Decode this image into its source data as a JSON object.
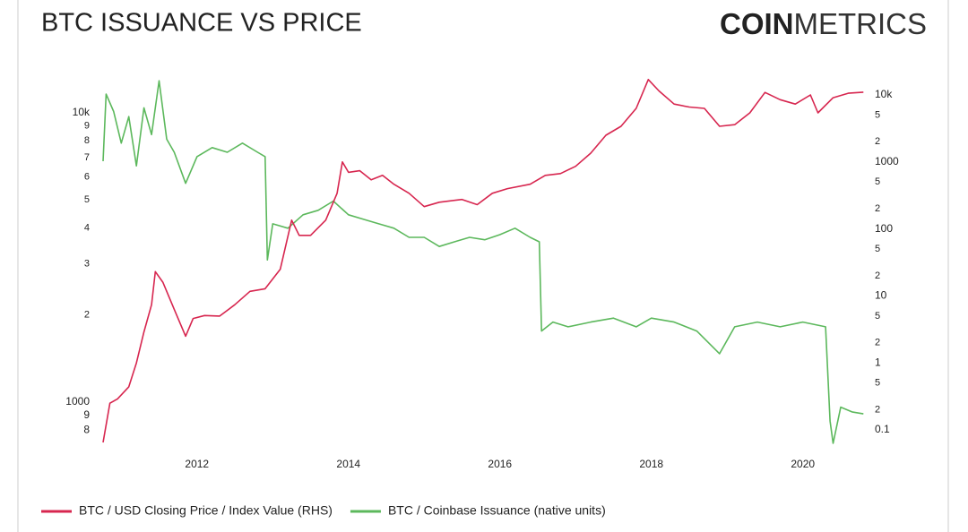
{
  "chart_data": {
    "type": "line",
    "title": "BTC ISSUANCE VS PRICE",
    "brand": {
      "bold": "COIN",
      "light": "METRICS"
    },
    "xlim": [
      2010.76,
      2020.82
    ],
    "xticks": [
      2012,
      2014,
      2016,
      2018,
      2020
    ],
    "log_scale": true,
    "ylim": [
      720,
      13100
    ],
    "yticks": [
      {
        "value": 800,
        "label": "8"
      },
      {
        "value": 900,
        "label": "9"
      },
      1000,
      {
        "value": 2000,
        "label": "2"
      },
      {
        "value": 3000,
        "label": "3"
      },
      {
        "value": 4000,
        "label": "4"
      },
      {
        "value": 5000,
        "label": "5"
      },
      {
        "value": 6000,
        "label": "6"
      },
      {
        "value": 7000,
        "label": "7"
      },
      {
        "value": 8000,
        "label": "8"
      },
      {
        "value": 9000,
        "label": "9"
      },
      {
        "value": 10000,
        "label": "10k"
      }
    ],
    "y2lim": [
      0.063,
      17400
    ],
    "y2ticks": [
      0.1,
      {
        "value": 0.2,
        "label": "2"
      },
      {
        "value": 0.5,
        "label": "5"
      },
      1,
      {
        "value": 2,
        "label": "2"
      },
      {
        "value": 5,
        "label": "5"
      },
      10,
      {
        "value": 20,
        "label": "2"
      },
      {
        "value": 50,
        "label": "5"
      },
      100,
      {
        "value": 200,
        "label": "2"
      },
      {
        "value": 500,
        "label": "5"
      },
      1000,
      {
        "value": 2000,
        "label": "2"
      },
      {
        "value": 5000,
        "label": "5"
      },
      {
        "value": 10000,
        "label": "10k"
      }
    ],
    "series": [
      {
        "name": "BTC / USD Closing Price / Index Value (RHS)",
        "color": "#d7264f",
        "axis": "y2",
        "x": [
          2010.76,
          2010.85,
          2010.95,
          2011.1,
          2011.2,
          2011.3,
          2011.4,
          2011.45,
          2011.55,
          2011.7,
          2011.85,
          2011.95,
          2012.1,
          2012.3,
          2012.5,
          2012.7,
          2012.9,
          2013.1,
          2013.25,
          2013.35,
          2013.5,
          2013.7,
          2013.85,
          2013.92,
          2014.0,
          2014.15,
          2014.3,
          2014.45,
          2014.6,
          2014.8,
          2015.0,
          2015.2,
          2015.5,
          2015.7,
          2015.9,
          2016.1,
          2016.4,
          2016.6,
          2016.8,
          2017.0,
          2017.2,
          2017.4,
          2017.6,
          2017.8,
          2017.96,
          2018.1,
          2018.3,
          2018.5,
          2018.7,
          2018.9,
          2019.1,
          2019.3,
          2019.5,
          2019.7,
          2019.9,
          2020.1,
          2020.2,
          2020.4,
          2020.6,
          2020.8
        ],
        "values": [
          0.065,
          0.25,
          0.29,
          0.44,
          1,
          2.9,
          7.4,
          23,
          16,
          6.3,
          2.5,
          4.6,
          5.1,
          5,
          7.4,
          11.7,
          12.8,
          25,
          135,
          80,
          80,
          135,
          340,
          1000,
          700,
          740,
          540,
          630,
          465,
          340,
          215,
          250,
          275,
          230,
          340,
          400,
          465,
          630,
          670,
          860,
          1350,
          2500,
          3400,
          6300,
          17000,
          11500,
          7300,
          6600,
          6300,
          3400,
          3600,
          5400,
          10900,
          8500,
          7300,
          10000,
          5400,
          9100,
          10600,
          11000
        ]
      },
      {
        "name": "BTC / Coinbase Issuance (native units)",
        "color": "#5cb85c",
        "x": [
          2010.76,
          2010.8,
          2010.9,
          2011.0,
          2011.1,
          2011.2,
          2011.3,
          2011.4,
          2011.5,
          2011.6,
          2011.7,
          2011.85,
          2012.0,
          2012.2,
          2012.4,
          2012.6,
          2012.8,
          2012.9,
          2012.93,
          2013.0,
          2013.2,
          2013.4,
          2013.6,
          2013.8,
          2014.0,
          2014.2,
          2014.4,
          2014.6,
          2014.8,
          2015.0,
          2015.2,
          2015.4,
          2015.6,
          2015.8,
          2016.0,
          2016.2,
          2016.4,
          2016.52,
          2016.55,
          2016.7,
          2016.9,
          2017.2,
          2017.5,
          2017.8,
          2018.0,
          2018.3,
          2018.6,
          2018.9,
          2019.1,
          2019.4,
          2019.7,
          2020.0,
          2020.3,
          2020.36,
          2020.4,
          2020.5,
          2020.65,
          2020.8
        ],
        "values": [
          6800,
          11600,
          10100,
          7850,
          9700,
          6550,
          10400,
          8400,
          12900,
          8100,
          7300,
          5700,
          7050,
          7580,
          7300,
          7850,
          7300,
          7050,
          3100,
          4130,
          3990,
          4440,
          4600,
          4950,
          4440,
          4280,
          4130,
          3990,
          3710,
          3710,
          3450,
          3580,
          3710,
          3640,
          3790,
          3990,
          3710,
          3580,
          1760,
          1890,
          1820,
          1890,
          1950,
          1820,
          1950,
          1890,
          1760,
          1470,
          1820,
          1890,
          1820,
          1890,
          1820,
          860,
          720,
          960,
          925,
          910
        ]
      }
    ]
  }
}
